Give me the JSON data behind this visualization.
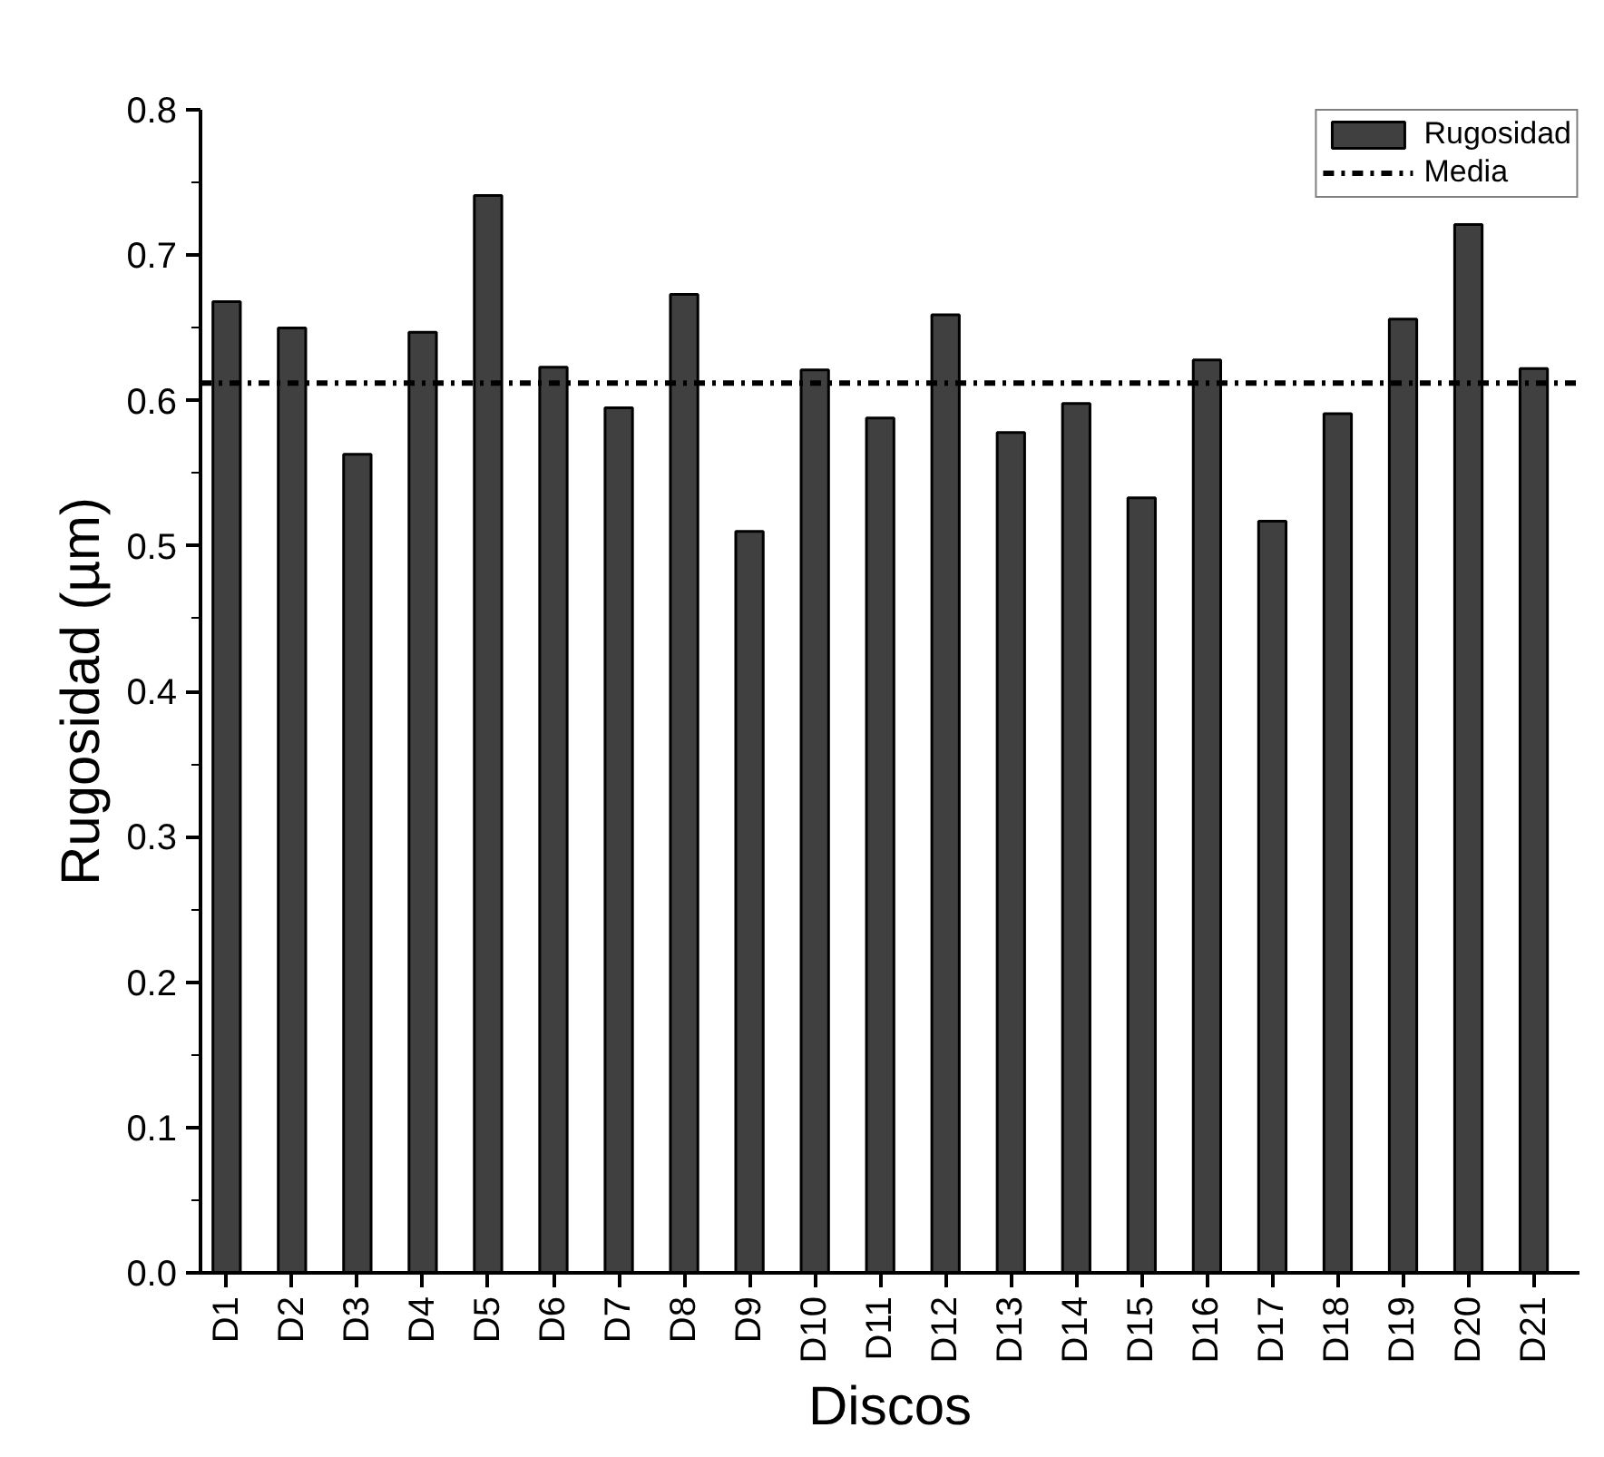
{
  "chart_data": {
    "type": "bar",
    "xlabel": "Discos",
    "ylabel": "Rugosidad (µm)",
    "categories": [
      "D1",
      "D2",
      "D3",
      "D4",
      "D5",
      "D6",
      "D7",
      "D8",
      "D9",
      "D10",
      "D11",
      "D12",
      "D13",
      "D14",
      "D15",
      "D16",
      "D17",
      "D18",
      "D19",
      "D20",
      "D21"
    ],
    "series": [
      {
        "name": "Rugosidad",
        "color": "#404040",
        "values": [
          0.668,
          0.65,
          0.563,
          0.647,
          0.741,
          0.623,
          0.595,
          0.673,
          0.51,
          0.621,
          0.588,
          0.659,
          0.578,
          0.598,
          0.533,
          0.628,
          0.517,
          0.591,
          0.656,
          0.721,
          0.622
        ]
      }
    ],
    "ref_lines": [
      {
        "axis": "y",
        "value": 0.612,
        "label": "Media",
        "color": "#000000",
        "line_style": "dashdot"
      }
    ],
    "ylim": [
      0,
      0.8
    ],
    "yticks": [
      {
        "value": 0,
        "label": "0.0"
      },
      0.1,
      0.2,
      0.3,
      0.4,
      0.5,
      0.6,
      0.7,
      0.8
    ],
    "grid": false,
    "legend": "top right"
  }
}
